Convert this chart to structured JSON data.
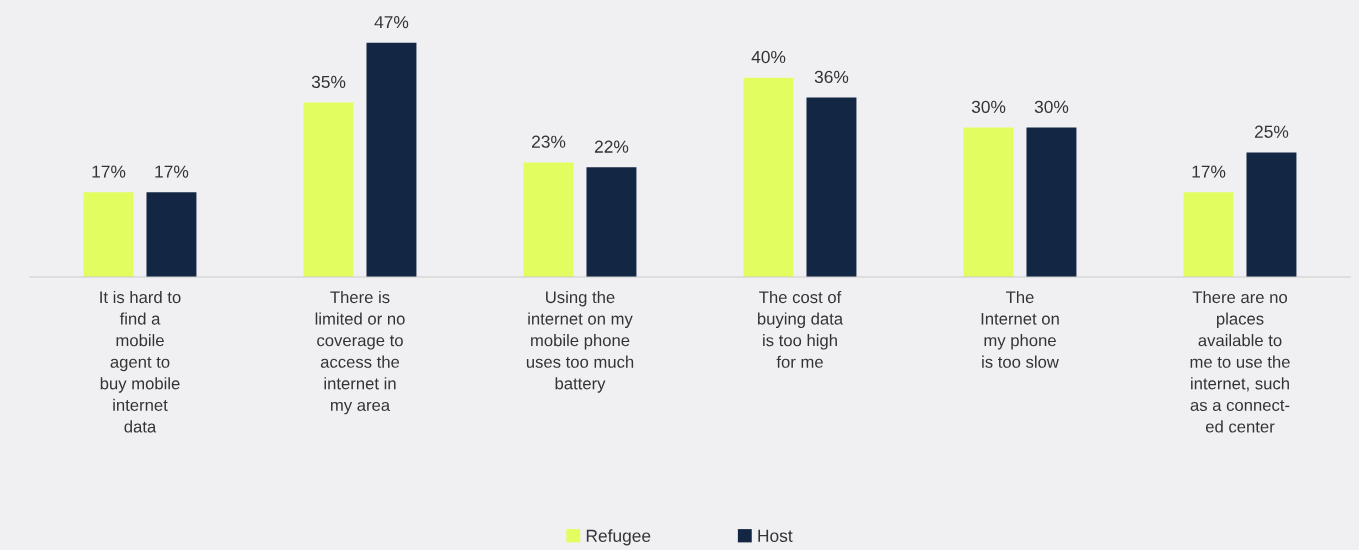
{
  "chart_data": {
    "type": "bar",
    "categories": [
      "It is hard to\nfind a\nmobile\nagent to\nbuy mobile\ninternet\ndata",
      "There is\nlimited or no\ncoverage to\naccess the\ninternet in\nmy area",
      "Using the\ninternet on my\nmobile phone\nuses too much\nbattery",
      "The cost of\nbuying data\nis too high\nfor me",
      "The\nInternet on\nmy phone\nis too slow",
      "There are no\nplaces\navailable to\nme to use the\ninternet, such\nas a connect-\ned center"
    ],
    "series": [
      {
        "name": "Refugee",
        "color": "#e2fd60",
        "values": [
          17,
          35,
          23,
          40,
          30,
          17
        ],
        "value_labels": [
          "17%",
          "35%",
          "23%",
          "40%",
          "30%",
          "17%"
        ]
      },
      {
        "name": "Host",
        "color": "#132644",
        "values": [
          17,
          47,
          22,
          36,
          30,
          25
        ],
        "value_labels": [
          "17%",
          "47%",
          "22%",
          "36%",
          "30%",
          "25%"
        ]
      }
    ],
    "legend": "bottom"
  }
}
